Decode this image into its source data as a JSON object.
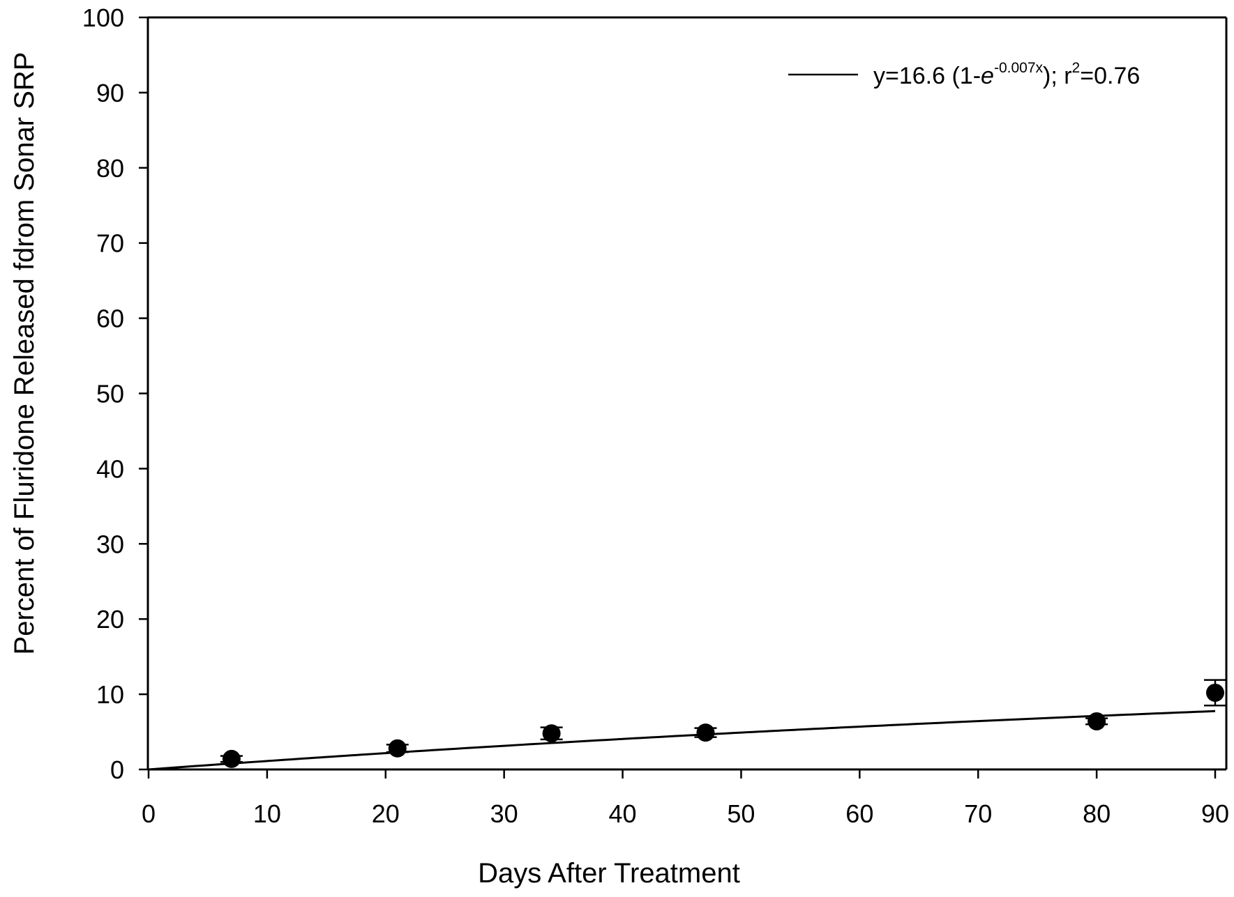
{
  "chart_data": {
    "type": "scatter",
    "xlabel": "Days After Treatment",
    "ylabel": "Percent of Fluridone Released fdrom Sonar SRP",
    "xlim": [
      0,
      90
    ],
    "ylim": [
      0,
      100
    ],
    "x_ticks": [
      0,
      10,
      20,
      30,
      40,
      50,
      60,
      70,
      80,
      90
    ],
    "y_ticks": [
      0,
      10,
      20,
      30,
      40,
      50,
      60,
      70,
      80,
      90,
      100
    ],
    "grid": false,
    "legend_position": "top-right",
    "legend": {
      "eq_prefix": "y=16.6 (1-",
      "eq_base": "e",
      "eq_exponent": "-0.007x",
      "eq_mid": "); r",
      "eq_r_exponent": "2",
      "eq_suffix": "=0.76"
    },
    "series": [
      {
        "x": [
          7,
          21,
          34,
          47,
          80,
          90
        ],
        "y": [
          1.4,
          2.8,
          4.8,
          4.9,
          6.4,
          10.2
        ],
        "error": [
          0.4,
          0.5,
          0.8,
          0.6,
          0.4,
          1.7
        ]
      }
    ],
    "fit": {
      "a": 16.6,
      "k": 0.007
    },
    "colors": {
      "axis": "#000000",
      "marker": "#000000",
      "line": "#000000"
    }
  }
}
